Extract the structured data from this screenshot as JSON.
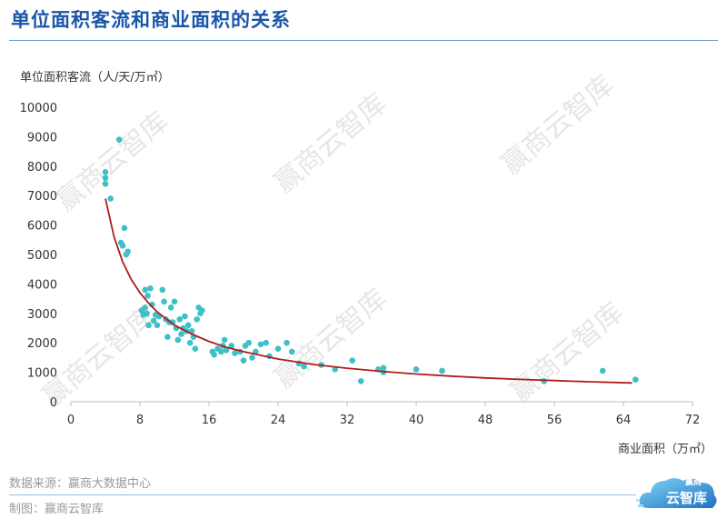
{
  "header": {
    "title": "单位面积客流和商业面积的关系"
  },
  "footer": {
    "source": "数据来源：赢商大数据中心",
    "maker": "制图：赢商云智库"
  },
  "logo": {
    "top_text": "赢商",
    "main_text": "云智库"
  },
  "watermark": {
    "text": "赢商云智库"
  },
  "chart_data": {
    "type": "scatter",
    "ylabel": "单位面积客流（人/天/万㎡）",
    "xlabel": "商业面积（万㎡）",
    "xlim": [
      0,
      72
    ],
    "ylim": [
      0,
      10000
    ],
    "x_ticks": [
      0,
      8,
      16,
      24,
      32,
      40,
      48,
      56,
      64,
      72
    ],
    "y_ticks": [
      0,
      1000,
      2000,
      3000,
      4000,
      5000,
      6000,
      7000,
      8000,
      9000,
      10000
    ],
    "point_color": "#3ec1c6",
    "trend_color": "#b01c1c",
    "grid": false,
    "points": [
      [
        4.0,
        7800
      ],
      [
        4.0,
        7600
      ],
      [
        4.0,
        7400
      ],
      [
        4.6,
        6900
      ],
      [
        5.6,
        8900
      ],
      [
        5.8,
        5400
      ],
      [
        6.0,
        5300
      ],
      [
        6.2,
        5900
      ],
      [
        6.4,
        5000
      ],
      [
        6.6,
        5100
      ],
      [
        8.2,
        3100
      ],
      [
        8.4,
        2950
      ],
      [
        8.6,
        3200
      ],
      [
        8.6,
        3800
      ],
      [
        8.8,
        3000
      ],
      [
        8.9,
        3600
      ],
      [
        9.0,
        2600
      ],
      [
        9.2,
        3850
      ],
      [
        9.4,
        3300
      ],
      [
        9.6,
        2750
      ],
      [
        9.8,
        2950
      ],
      [
        10.0,
        2600
      ],
      [
        10.2,
        2900
      ],
      [
        10.6,
        3800
      ],
      [
        10.8,
        3400
      ],
      [
        11.0,
        2800
      ],
      [
        11.2,
        2200
      ],
      [
        11.4,
        2700
      ],
      [
        11.6,
        3200
      ],
      [
        11.8,
        2700
      ],
      [
        12.0,
        3400
      ],
      [
        12.2,
        2500
      ],
      [
        12.4,
        2100
      ],
      [
        12.6,
        2800
      ],
      [
        12.8,
        2300
      ],
      [
        13.0,
        2500
      ],
      [
        13.2,
        2900
      ],
      [
        13.4,
        2400
      ],
      [
        13.6,
        2600
      ],
      [
        13.8,
        2000
      ],
      [
        14.0,
        2400
      ],
      [
        14.2,
        2200
      ],
      [
        14.4,
        1800
      ],
      [
        14.6,
        2800
      ],
      [
        14.8,
        3200
      ],
      [
        15.0,
        3000
      ],
      [
        15.2,
        3100
      ],
      [
        16.4,
        1700
      ],
      [
        16.6,
        1600
      ],
      [
        17.0,
        1800
      ],
      [
        17.4,
        1700
      ],
      [
        17.6,
        1900
      ],
      [
        17.8,
        2100
      ],
      [
        18.0,
        1750
      ],
      [
        18.6,
        1900
      ],
      [
        19.0,
        1650
      ],
      [
        19.6,
        1700
      ],
      [
        20.0,
        1400
      ],
      [
        20.2,
        1900
      ],
      [
        20.6,
        2000
      ],
      [
        21.0,
        1500
      ],
      [
        21.4,
        1700
      ],
      [
        22.0,
        1950
      ],
      [
        22.6,
        2000
      ],
      [
        23.0,
        1550
      ],
      [
        24.0,
        1800
      ],
      [
        25.0,
        2000
      ],
      [
        25.6,
        1700
      ],
      [
        26.4,
        1300
      ],
      [
        27.0,
        1200
      ],
      [
        29.0,
        1250
      ],
      [
        30.6,
        1100
      ],
      [
        32.6,
        1400
      ],
      [
        33.6,
        700
      ],
      [
        35.6,
        1100
      ],
      [
        36.2,
        1150
      ],
      [
        36.2,
        1000
      ],
      [
        40.0,
        1100
      ],
      [
        43.0,
        1050
      ],
      [
        54.8,
        700
      ],
      [
        61.6,
        1050
      ],
      [
        65.4,
        750
      ]
    ],
    "trend": {
      "type": "power",
      "points": [
        [
          4.0,
          6900
        ],
        [
          5.0,
          5600
        ],
        [
          6.0,
          4750
        ],
        [
          7.0,
          4150
        ],
        [
          8.0,
          3700
        ],
        [
          9.0,
          3350
        ],
        [
          10.0,
          3050
        ],
        [
          12.0,
          2600
        ],
        [
          14.0,
          2300
        ],
        [
          16.0,
          2050
        ],
        [
          18.0,
          1850
        ],
        [
          20.0,
          1700
        ],
        [
          24.0,
          1450
        ],
        [
          28.0,
          1270
        ],
        [
          32.0,
          1140
        ],
        [
          36.0,
          1030
        ],
        [
          40.0,
          940
        ],
        [
          44.0,
          870
        ],
        [
          48.0,
          810
        ],
        [
          52.0,
          760
        ],
        [
          56.0,
          720
        ],
        [
          60.0,
          680
        ],
        [
          65.0,
          640
        ]
      ]
    }
  }
}
